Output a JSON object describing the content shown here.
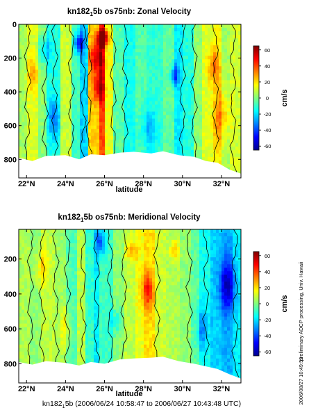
{
  "chart_data": [
    {
      "type": "heatmap",
      "title": "kn182_5b os75nb: Zonal Velocity",
      "title_parts": [
        "kn182",
        "1",
        "5b os75nb: Zonal Velocity"
      ],
      "xlabel": "latitude",
      "xtick_labels": [
        "22°N",
        "24°N",
        "26°N",
        "28°N",
        "30°N",
        "32°N"
      ],
      "xticks": [
        22,
        24,
        26,
        28,
        30,
        32
      ],
      "xlim": [
        21.6,
        33.0
      ],
      "ylabel": "",
      "yticks": [
        0,
        200,
        400,
        600,
        800
      ],
      "ylim": [
        910,
        0
      ],
      "colorbar_label": "cm/s",
      "colorbar_ticks": [
        60,
        40,
        20,
        0,
        -20,
        -40,
        -60
      ],
      "clim": [
        -65,
        65
      ],
      "contour_levels": [
        0
      ],
      "bottom_depth": [
        [
          21.6,
          790
        ],
        [
          22.3,
          810
        ],
        [
          23.0,
          780
        ],
        [
          24.0,
          775
        ],
        [
          24.7,
          800
        ],
        [
          25.3,
          770
        ],
        [
          26.0,
          775
        ],
        [
          26.8,
          760
        ],
        [
          27.5,
          755
        ],
        [
          28.4,
          765
        ],
        [
          29.0,
          752
        ],
        [
          29.8,
          775
        ],
        [
          30.6,
          785
        ],
        [
          31.2,
          810
        ],
        [
          31.8,
          820
        ],
        [
          32.4,
          860
        ],
        [
          33.0,
          885
        ]
      ],
      "bands": [
        [
          21.6,
          22.0,
          5
        ],
        [
          22.0,
          22.6,
          12
        ],
        [
          22.6,
          23.0,
          2
        ],
        [
          23.0,
          23.7,
          -12
        ],
        [
          23.7,
          24.3,
          10
        ],
        [
          24.3,
          24.8,
          -8
        ],
        [
          24.8,
          25.2,
          -22
        ],
        [
          25.2,
          25.7,
          22
        ],
        [
          25.7,
          26.0,
          40
        ],
        [
          26.0,
          26.4,
          14
        ],
        [
          26.4,
          27.0,
          -5
        ],
        [
          27.0,
          27.6,
          -14
        ],
        [
          27.6,
          28.2,
          -6
        ],
        [
          28.2,
          29.0,
          -10
        ],
        [
          29.0,
          29.6,
          -4
        ],
        [
          29.6,
          30.0,
          -18
        ],
        [
          30.0,
          30.6,
          -12
        ],
        [
          30.6,
          31.0,
          2
        ],
        [
          31.0,
          31.6,
          12
        ],
        [
          31.6,
          32.0,
          16
        ],
        [
          32.0,
          32.5,
          4
        ],
        [
          32.5,
          33.0,
          10
        ]
      ],
      "features": [
        [
          25.9,
          80,
          0.25,
          45,
          70
        ],
        [
          25.6,
          200,
          0.35,
          90,
          34
        ],
        [
          25.7,
          380,
          0.3,
          80,
          30
        ],
        [
          24.7,
          110,
          0.22,
          60,
          -38
        ],
        [
          22.9,
          150,
          0.3,
          80,
          -20
        ],
        [
          23.4,
          560,
          0.3,
          120,
          -22
        ],
        [
          29.6,
          300,
          0.2,
          60,
          -30
        ],
        [
          32.0,
          550,
          0.4,
          160,
          20
        ],
        [
          31.6,
          250,
          0.3,
          100,
          20
        ],
        [
          28.3,
          620,
          0.4,
          120,
          -16
        ],
        [
          22.3,
          300,
          0.25,
          100,
          16
        ]
      ],
      "contour_x": [
        22.05,
        22.95,
        23.45,
        24.3,
        24.9,
        25.2,
        26.45,
        27.05,
        30.0,
        30.6,
        31.7,
        32.6
      ]
    },
    {
      "type": "heatmap",
      "title": "kn182_5b os75nb: Meridional Velocity",
      "title_parts": [
        "kn182",
        "1",
        "5b os75nb: Meridional Velocity"
      ],
      "xlabel": "latitude",
      "xtick_labels": [
        "22°N",
        "24°N",
        "26°N",
        "28°N",
        "30°N",
        "32°N"
      ],
      "xticks": [
        22,
        24,
        26,
        28,
        30,
        32
      ],
      "xlim": [
        21.6,
        33.0
      ],
      "ylabel": "",
      "yticks": [
        200,
        400,
        600,
        800
      ],
      "ylim": [
        910,
        30
      ],
      "colorbar_label": "cm/s",
      "colorbar_ticks": [
        60,
        40,
        20,
        0,
        -20,
        -40,
        -60
      ],
      "clim": [
        -65,
        65
      ],
      "contour_levels": [
        0
      ],
      "bottom_depth": [
        [
          21.6,
          790
        ],
        [
          22.3,
          805
        ],
        [
          23.0,
          785
        ],
        [
          24.0,
          795
        ],
        [
          24.7,
          810
        ],
        [
          25.3,
          790
        ],
        [
          26.0,
          800
        ],
        [
          26.8,
          775
        ],
        [
          27.5,
          770
        ],
        [
          28.4,
          765
        ],
        [
          29.0,
          760
        ],
        [
          29.8,
          785
        ],
        [
          30.6,
          800
        ],
        [
          31.2,
          815
        ],
        [
          31.8,
          830
        ],
        [
          32.4,
          860
        ],
        [
          33.0,
          885
        ]
      ],
      "bands": [
        [
          21.6,
          22.2,
          6
        ],
        [
          22.2,
          22.8,
          2
        ],
        [
          22.8,
          23.4,
          8
        ],
        [
          23.4,
          24.0,
          4
        ],
        [
          24.0,
          24.6,
          -6
        ],
        [
          24.6,
          25.0,
          8
        ],
        [
          25.0,
          25.4,
          -10
        ],
        [
          25.4,
          25.8,
          -18
        ],
        [
          25.8,
          26.4,
          -8
        ],
        [
          26.4,
          27.0,
          2
        ],
        [
          27.0,
          27.6,
          8
        ],
        [
          27.6,
          28.0,
          14
        ],
        [
          28.0,
          28.6,
          20
        ],
        [
          28.6,
          29.2,
          10
        ],
        [
          29.2,
          29.8,
          6
        ],
        [
          29.8,
          30.4,
          2
        ],
        [
          30.4,
          30.9,
          -4
        ],
        [
          30.9,
          31.5,
          -14
        ],
        [
          31.5,
          32.0,
          -22
        ],
        [
          32.0,
          32.6,
          -26
        ],
        [
          32.6,
          33.0,
          -18
        ]
      ],
      "features": [
        [
          25.8,
          100,
          0.25,
          80,
          -28
        ],
        [
          28.2,
          380,
          0.3,
          100,
          28
        ],
        [
          32.3,
          350,
          0.4,
          150,
          -32
        ],
        [
          22.8,
          250,
          0.3,
          100,
          16
        ],
        [
          24.0,
          600,
          0.3,
          120,
          14
        ],
        [
          29.6,
          150,
          0.25,
          60,
          16
        ],
        [
          26.6,
          560,
          0.3,
          80,
          -14
        ],
        [
          31.0,
          600,
          0.3,
          120,
          -18
        ],
        [
          27.4,
          150,
          0.3,
          60,
          18
        ]
      ],
      "contour_x": [
        22.2,
        22.8,
        23.5,
        24.1,
        24.9,
        25.6,
        26.3,
        27.0,
        28.7,
        30.35,
        31.2,
        32.7
      ]
    }
  ],
  "footer": {
    "cruise": "kn182",
    "cruise_sub": "1",
    "range_text": "5b (2006/06/24 10:58:47 to 2006/06/27 10:43:48 UTC)"
  },
  "side_text": {
    "processing": "preliminary ADCP processing,  Univ. Hawaii",
    "timestamp": "2006/08/27 10:49:59"
  }
}
